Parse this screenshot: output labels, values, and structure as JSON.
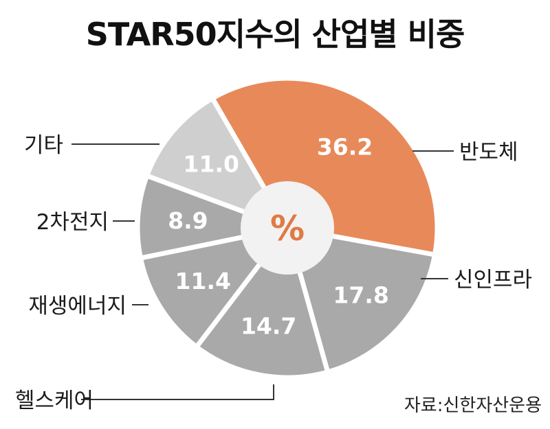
{
  "chart_data": {
    "type": "pie",
    "title": "STAR50지수의 산업별 비중",
    "center_label": "%",
    "slices": [
      {
        "label": "반도체",
        "value": 36.2,
        "color": "#e8895a"
      },
      {
        "label": "신인프라",
        "value": 17.8,
        "color": "#a9a9a9"
      },
      {
        "label": "헬스케어",
        "value": 14.7,
        "color": "#a9a9a9"
      },
      {
        "label": "재생에너지",
        "value": 11.4,
        "color": "#a9a9a9"
      },
      {
        "label": "2차전지",
        "value": 8.9,
        "color": "#a9a9a9"
      },
      {
        "label": "기타",
        "value": 11.0,
        "color": "#cfcfcf"
      }
    ],
    "value_labels": [
      "36.2",
      "17.8",
      "14.7",
      "11.4",
      "8.9",
      "11.0"
    ],
    "source": "자료:신한자산운용"
  },
  "colors": {
    "accent": "#e8895a",
    "gray": "#a9a9a9",
    "light_gray": "#cfcfcf",
    "center_text": "#e07a45"
  }
}
